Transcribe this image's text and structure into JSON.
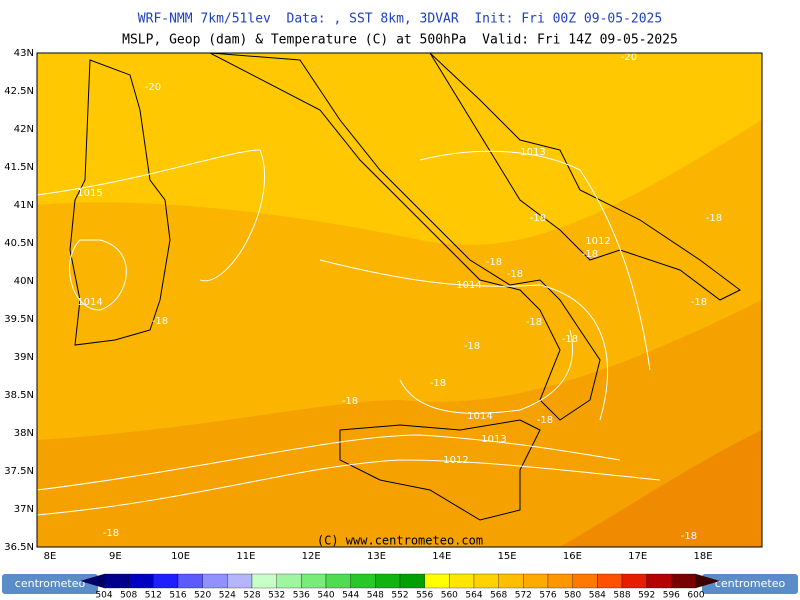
{
  "title_line1": "WRF-NMM 7km/51lev  Data: , SST 8km, 3DVAR  Init: Fri 00Z 09-05-2025",
  "title_line2": "MSLP, Geop (dam) & Temperature (C) at 500hPa  Valid: Fri 14Z 09-05-2025",
  "lat_labels": [
    "43N",
    "42.5N",
    "42N",
    "41.5N",
    "41N",
    "40.5N",
    "40N",
    "39.5N",
    "39N",
    "38.5N",
    "38N",
    "37.5N",
    "37N",
    "36.5N"
  ],
  "lon_labels": [
    "8E",
    "9E",
    "10E",
    "11E",
    "12E",
    "13E",
    "14E",
    "15E",
    "16E",
    "17E",
    "18E"
  ],
  "contour_labels": [
    "-20",
    "1015",
    "1014",
    "-18",
    "1013",
    "-18",
    "1012",
    "-18",
    "-18",
    "-18",
    "1014",
    "-18",
    "-18",
    "-18",
    "-18",
    "-18",
    "-18",
    "-18",
    "1014",
    "-18",
    "1013",
    "1012",
    "-18",
    "-18",
    "-20"
  ],
  "copyright": "(C) www.centrometeo.com",
  "logo_left": "centrometeo",
  "logo_right": "centrometeo",
  "colorbar": {
    "labels": [
      504,
      508,
      512,
      516,
      520,
      524,
      528,
      532,
      536,
      540,
      544,
      548,
      552,
      556,
      560,
      564,
      568,
      572,
      576,
      580,
      584,
      588,
      592,
      596,
      600
    ],
    "colors": [
      "#00008c",
      "#0000c0",
      "#1e1eff",
      "#5a5aff",
      "#9090ff",
      "#b4b4ff",
      "#c8ffc8",
      "#a0f5a0",
      "#78eb78",
      "#50dc50",
      "#28c828",
      "#10b410",
      "#00a000",
      "#ffff00",
      "#ffe600",
      "#ffd200",
      "#ffbe00",
      "#ffaa00",
      "#ff9600",
      "#ff7800",
      "#ff5000",
      "#e61e00",
      "#b40000",
      "#780000"
    ],
    "low_color": "#000064",
    "high_color": "#3c0000"
  }
}
